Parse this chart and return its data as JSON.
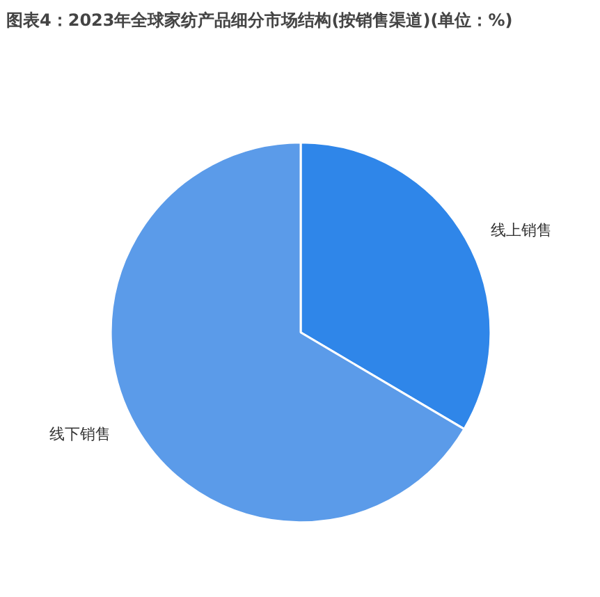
{
  "chart_data": {
    "type": "pie",
    "title": "图表4：2023年全球家纺产品细分市场结构(按销售渠道)(单位：%)",
    "categories": [
      "线上销售",
      "线下销售"
    ],
    "values": [
      33.5,
      66.5
    ],
    "colors": [
      "#2f86e9",
      "#5b9be9"
    ]
  }
}
